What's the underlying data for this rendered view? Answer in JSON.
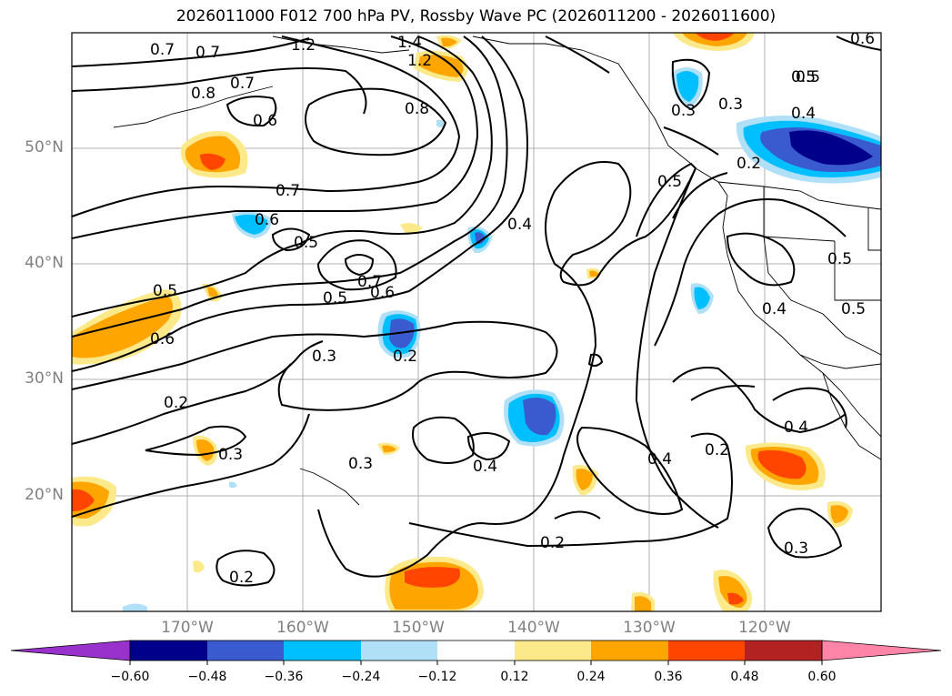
{
  "title": "2026011000 F012 700 hPa PV, Rossby Wave PC (2026011200 - 2026011600)",
  "lat_labels": [
    "50°N",
    "40°N",
    "30°N",
    "20°N"
  ],
  "lon_labels": [
    "170°W",
    "160°W",
    "150°W",
    "140°W",
    "130°W",
    "120°W"
  ],
  "contour_labels": [
    "0.7",
    "1.2",
    "1.4",
    "1.2",
    "0.8",
    "0.7",
    "0.6",
    "0.8",
    "0.7",
    "0.6",
    "0.5",
    "0.7",
    "0.6",
    "0.5",
    "0.5",
    "0.6",
    "0.7",
    "0.5",
    "0.3",
    "0.2",
    "0.3",
    "0.2",
    "0.2",
    "0.3",
    "0.2",
    "0.4",
    "0.4",
    "0.2",
    "0.4",
    "0.3",
    "0.5",
    "0.3",
    "0.4",
    "0.5",
    "0.2",
    "0.3",
    "0.5",
    "0.4",
    "0.5",
    "0.4",
    "0.6"
  ],
  "colorbar": {
    "ticks": [
      "−0.60",
      "−0.48",
      "−0.36",
      "−0.24",
      "−0.12",
      "0.12",
      "0.24",
      "0.36",
      "0.48",
      "0.60"
    ],
    "colors": [
      "#9932cc",
      "#00008b",
      "#3a5bcf",
      "#00bfff",
      "#b0e0f8",
      "#ffffff",
      "#fce98a",
      "#ffa500",
      "#ff4500",
      "#b22222",
      "#ff85a8"
    ]
  }
}
